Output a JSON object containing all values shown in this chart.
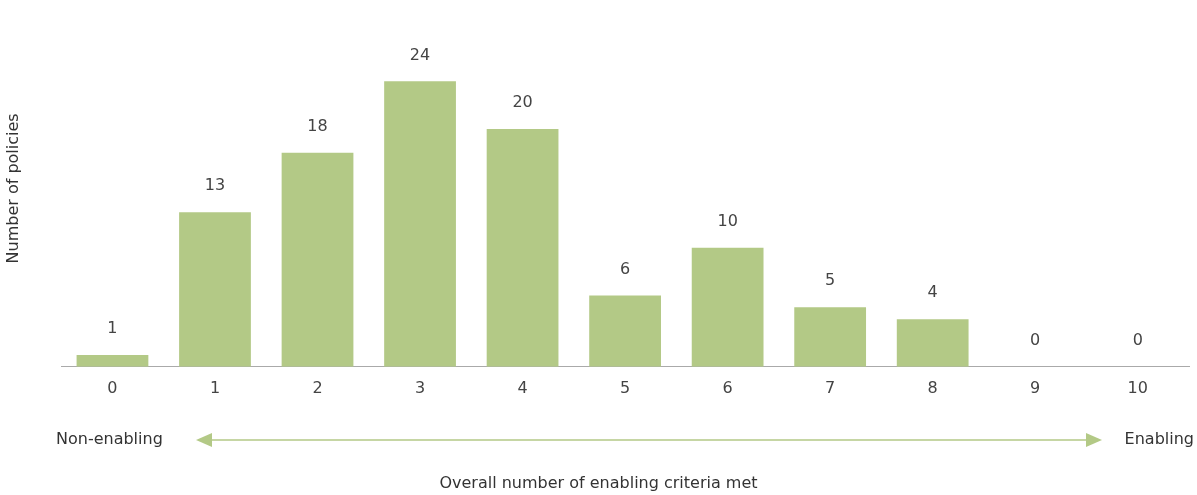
{
  "chart_data": {
    "type": "bar",
    "categories": [
      "0",
      "1",
      "2",
      "3",
      "4",
      "5",
      "6",
      "7",
      "8",
      "9",
      "10"
    ],
    "values": [
      1,
      13,
      18,
      24,
      20,
      6,
      10,
      5,
      4,
      0,
      0
    ],
    "color": "#b3c986",
    "ylabel": "Number of policies",
    "xlabel": "Overall number of enabling criteria met",
    "annotations": [
      "Non-enabling",
      "Enabling"
    ],
    "data_labels": true,
    "grid": false,
    "legend": false,
    "tick_labels": "x"
  }
}
